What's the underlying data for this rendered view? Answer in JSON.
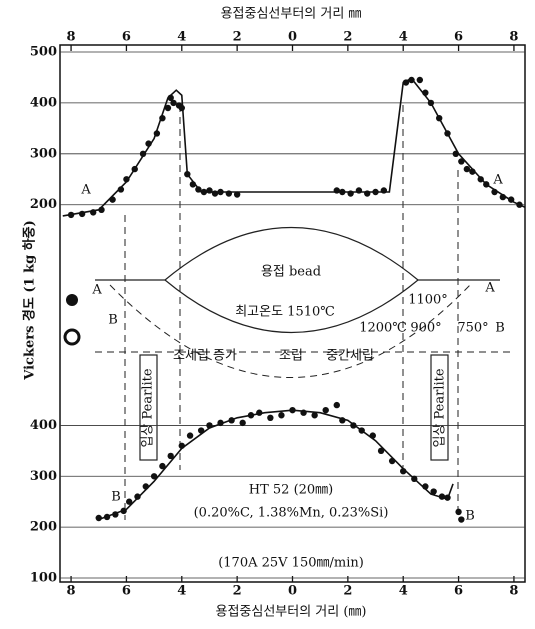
{
  "chart_data": [
    {
      "type": "scatter",
      "title": "용접중심선부터의 거리 ㎜",
      "ylabel": "Vickers 경도 (1 kg 하중)",
      "xlim": [
        -8.4,
        8.4
      ],
      "xticks": [
        {
          "value": -8,
          "label": "8"
        },
        {
          "value": -6,
          "label": "6"
        },
        {
          "value": -4,
          "label": "4"
        },
        {
          "value": -2,
          "label": "2"
        },
        0,
        2,
        4,
        6,
        8
      ],
      "ylim": [
        170,
        500
      ],
      "yticks": [
        200,
        300,
        400,
        500
      ],
      "grid": true,
      "series": [
        {
          "style": "points",
          "color": "#111",
          "x": [
            -8.0,
            -7.6,
            -7.2,
            -6.9,
            -6.5,
            -6.2,
            -6.0,
            -5.7,
            -5.4,
            -5.2,
            -4.9,
            -4.7,
            -4.5,
            -4.4,
            -4.3,
            -4.1,
            -4.0,
            -3.8,
            -3.6,
            -3.4,
            -3.2,
            -3.0,
            -2.8,
            -2.6,
            -2.3,
            -2.0,
            1.6,
            1.8,
            2.1,
            2.4,
            2.7,
            3.0,
            3.3,
            4.1,
            4.3,
            4.6,
            4.8,
            5.0,
            5.3,
            5.6,
            5.9,
            6.1,
            6.3,
            6.5,
            6.8,
            7.0,
            7.3,
            7.6,
            7.9,
            8.2
          ],
          "values": [
            180,
            182,
            185,
            190,
            210,
            230,
            250,
            270,
            300,
            320,
            340,
            370,
            390,
            410,
            400,
            395,
            390,
            260,
            240,
            230,
            225,
            228,
            222,
            225,
            222,
            220,
            228,
            225,
            222,
            228,
            222,
            225,
            228,
            440,
            445,
            445,
            420,
            400,
            370,
            340,
            300,
            285,
            270,
            265,
            250,
            240,
            225,
            215,
            210,
            200
          ]
        },
        {
          "style": "line",
          "color": "#111",
          "x": [
            -8.3,
            -7.0,
            -6.0,
            -5.0,
            -4.5,
            -4.2,
            -4.0,
            -3.8,
            -3.3,
            3.5,
            4.0,
            4.3,
            5.0,
            6.0,
            7.0,
            8.0,
            8.4
          ],
          "values": [
            178,
            190,
            245,
            330,
            410,
            425,
            415,
            260,
            225,
            225,
            440,
            448,
            400,
            300,
            240,
            205,
            195
          ]
        }
      ],
      "annotations": [
        "A",
        "A"
      ]
    },
    {
      "type": "scatter",
      "xlabel": "용접중심선부터의 거리 (㎜)",
      "xlim": [
        -8.4,
        8.4
      ],
      "xticks": [
        {
          "value": -8,
          "label": "8"
        },
        {
          "value": -6,
          "label": "6"
        },
        {
          "value": -4,
          "label": "4"
        },
        {
          "value": -2,
          "label": "2"
        },
        0,
        2,
        4,
        6,
        8
      ],
      "ylim": [
        100,
        450
      ],
      "yticks": [
        100,
        200,
        300,
        400
      ],
      "grid": true,
      "series": [
        {
          "style": "points",
          "color": "#111",
          "x": [
            -7.0,
            -6.7,
            -6.4,
            -6.1,
            -5.9,
            -5.6,
            -5.3,
            -5.0,
            -4.7,
            -4.4,
            -4.0,
            -3.7,
            -3.3,
            -3.0,
            -2.6,
            -2.2,
            -1.8,
            -1.5,
            -1.2,
            -0.8,
            -0.4,
            0,
            0.4,
            0.8,
            1.2,
            1.6,
            1.8,
            2.2,
            2.5,
            2.9,
            3.2,
            3.6,
            4.0,
            4.4,
            4.8,
            5.1,
            5.4,
            5.6,
            6.0,
            6.1
          ],
          "values": [
            218,
            220,
            225,
            232,
            250,
            260,
            280,
            300,
            320,
            340,
            360,
            380,
            390,
            400,
            405,
            410,
            405,
            420,
            425,
            415,
            420,
            430,
            425,
            420,
            430,
            440,
            410,
            400,
            390,
            380,
            350,
            330,
            310,
            295,
            280,
            270,
            260,
            258,
            230,
            215
          ]
        },
        {
          "style": "line",
          "color": "#111",
          "x": [
            -7.0,
            -6.0,
            -5.0,
            -4.0,
            -3.0,
            -2.0,
            -1.0,
            0,
            1.0,
            2.0,
            3.0,
            4.0,
            5.0,
            5.6,
            5.8
          ],
          "values": [
            215,
            235,
            290,
            355,
            395,
            415,
            425,
            430,
            425,
            410,
            370,
            315,
            265,
            255,
            285
          ]
        }
      ],
      "annotations": [
        "B",
        "B",
        "입상 Pearlite",
        "입상 Pearlite",
        "HT 52 (20㎜)",
        "(0.20%C, 1.38%Mn, 0.23%Si)",
        "(170A 25V 150㎜/min)"
      ]
    }
  ],
  "diagram": {
    "labels": [
      "용접 bead",
      "최고온도 1510℃",
      "1100°",
      "1200℃",
      "900°",
      "750°",
      "A",
      "B",
      "A",
      "B",
      "조세립 증가",
      "조립",
      "중간세립"
    ]
  }
}
